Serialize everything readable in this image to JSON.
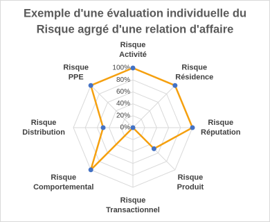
{
  "chart_data": {
    "type": "radar",
    "title": [
      "Exemple d'une évaluation individuelle du",
      "Risque agrgé d'une relation d'affaire"
    ],
    "categories": [
      [
        "Risque",
        "Activité"
      ],
      [
        "Risque",
        "Résidence"
      ],
      [
        "Risque",
        "Réputation"
      ],
      [
        "Risque",
        "Produit"
      ],
      [
        "Risque",
        "Transactionnel"
      ],
      [
        "Risque",
        "Comportemental"
      ],
      [
        "Risque",
        "Distribution"
      ],
      [
        "Risque",
        "PPE"
      ]
    ],
    "series": [
      {
        "color": "#f5a00f",
        "marker_color": "#4472c4",
        "values": [
          100,
          100,
          100,
          50,
          0,
          100,
          50,
          100
        ]
      }
    ],
    "ylim": [
      0,
      100
    ],
    "yticks": [
      {
        "value": 0,
        "label": "0%"
      },
      {
        "value": 20,
        "label": "20%"
      },
      {
        "value": 40,
        "label": "40%"
      },
      {
        "value": 60,
        "label": "60%"
      },
      {
        "value": 80,
        "label": "80%"
      },
      {
        "value": 100,
        "label": "100%"
      }
    ],
    "grid": true
  }
}
